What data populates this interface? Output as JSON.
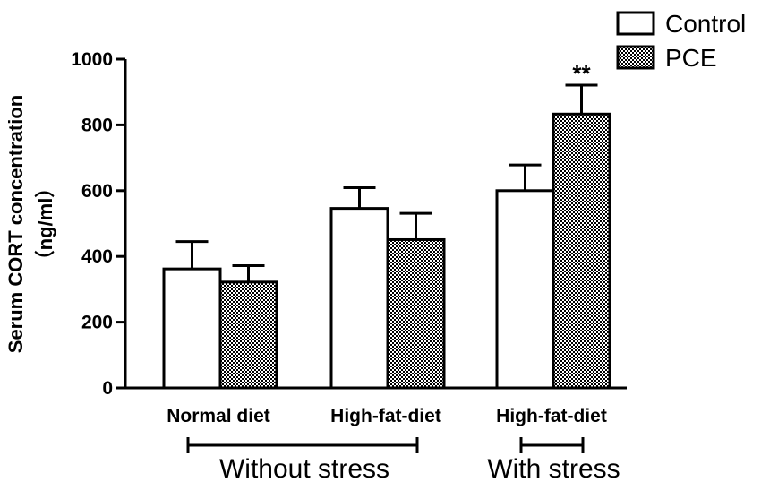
{
  "chart_data": {
    "type": "bar",
    "categories": [
      "Normal diet",
      "High-fat-diet",
      "High-fat-diet"
    ],
    "groups": [
      {
        "label": "Without stress",
        "category_indices": [
          0,
          1
        ]
      },
      {
        "label": "With stress",
        "category_indices": [
          2
        ]
      }
    ],
    "series": [
      {
        "name": "Control",
        "fill": "white",
        "values": [
          362,
          546,
          600
        ],
        "errors": [
          83,
          63,
          78
        ]
      },
      {
        "name": "PCE",
        "fill": "checker",
        "values": [
          322,
          451,
          833
        ],
        "errors": [
          50,
          80,
          88
        ]
      }
    ],
    "ylabel": "Serum CORT concentration",
    "ylabel_unit": "（ng/ml）",
    "ylim": [
      0,
      1000
    ],
    "yticks": [
      "0",
      "200",
      "400",
      "600",
      "800",
      "1000"
    ],
    "annotations": [
      {
        "series": 1,
        "category": 2,
        "text": "**"
      }
    ],
    "legend": {
      "position": "top-right",
      "entries": [
        "Control",
        "PCE"
      ]
    },
    "colors": {
      "stroke": "#000000",
      "background": "#ffffff"
    }
  }
}
